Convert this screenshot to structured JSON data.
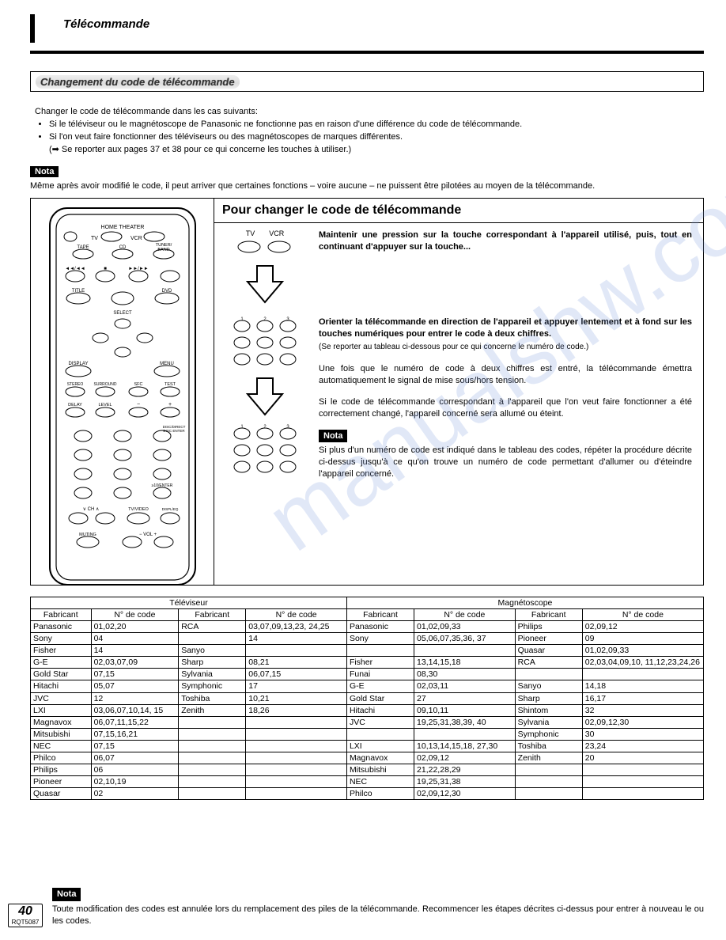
{
  "header": {
    "title": "Télécommande"
  },
  "banner": {
    "title": "Changement du code de télécommande"
  },
  "intro": {
    "lead": "Changer le code de télécommande dans les cas suivants:",
    "bullets": [
      "Si le téléviseur ou le magnétoscope de Panasonic ne fonctionne pas en raison d'une différence du code de télécommande.",
      "Si l'on veut faire fonctionner des téléviseurs ou des magnétoscopes de marques différentes."
    ],
    "ref": "(➡ Se reporter aux pages 37 et 38 pour ce qui concerne les touches à utiliser.)"
  },
  "nota1": {
    "label": "Nota",
    "text": "Même après avoir modifié le code, il peut arriver que certaines fonctions – voire aucune – ne puissent être pilotées au moyen de la télécommande."
  },
  "changer": {
    "title": "Pour changer le code de télécommande",
    "tv_label": "TV",
    "vcr_label": "VCR",
    "step1_bold": "Maintenir une pression sur la touche correspondant à l'appareil utilisé, puis, tout en continuant d'appuyer sur la touche...",
    "step2_bold": "Orienter la télécommande en direction de l'appareil et appuyer lentement et à fond sur les touches numériques pour entrer le code à deux chiffres.",
    "step2_small": "(Se reporter au tableau ci-dessous pour ce qui concerne le numéro de code.)",
    "step2_p2": "Une fois que le numéro de code à deux chiffres est entré, la télécommande émettra automatiquement le signal de mise sous/hors tension.",
    "step2_p3": "Si le code de télécommande correspondant à l'appareil que l'on veut faire fonctionner a été correctement changé, l'appareil concerné sera allumé ou éteint.",
    "nota2_label": "Nota",
    "nota2_text": "Si plus d'un numéro de code est indiqué dans le tableau des codes, répéter la procédure décrite ci-dessus jusqu'à ce qu'on trouve un numéro de code permettant d'allumer ou d'éteindre l'appareil concerné."
  },
  "table": {
    "group_tv": "Téléviseur",
    "group_vcr": "Magnétoscope",
    "col_fabricant": "Fabricant",
    "col_code": "N° de code",
    "tv_left": [
      [
        "Panasonic",
        "01,02,20"
      ],
      [
        "Sony",
        "04"
      ],
      [
        "Fisher",
        "14"
      ],
      [
        "G-E",
        "02,03,07,09"
      ],
      [
        "Gold Star",
        "07,15"
      ],
      [
        "Hitachi",
        "05,07"
      ],
      [
        "JVC",
        "12"
      ],
      [
        "LXI",
        "03,06,07,10,14, 15"
      ],
      [
        "Magnavox",
        "06,07,11,15,22"
      ],
      [
        "Mitsubishi",
        "07,15,16,21"
      ],
      [
        "NEC",
        "07,15"
      ],
      [
        "Philco",
        "06,07"
      ],
      [
        "Philips",
        "06"
      ],
      [
        "Pioneer",
        "02,10,19"
      ],
      [
        "Quasar",
        "02"
      ]
    ],
    "tv_right": [
      [
        "RCA",
        "03,07,09,13,23, 24,25"
      ],
      [
        "",
        "14"
      ],
      [
        "Sanyo",
        ""
      ],
      [
        "Sharp",
        "08,21"
      ],
      [
        "Sylvania",
        "06,07,15"
      ],
      [
        "Symphonic",
        "17"
      ],
      [
        "Toshiba",
        "10,21"
      ],
      [
        "Zenith",
        "18,26"
      ],
      [
        "",
        ""
      ],
      [
        "",
        ""
      ],
      [
        "",
        ""
      ],
      [
        "",
        ""
      ],
      [
        "",
        ""
      ],
      [
        "",
        ""
      ],
      [
        "",
        ""
      ]
    ],
    "vcr_left": [
      [
        "Panasonic",
        "01,02,09,33"
      ],
      [
        "Sony",
        "05,06,07,35,36, 37"
      ],
      [
        "",
        ""
      ],
      [
        "Fisher",
        "13,14,15,18"
      ],
      [
        "Funai",
        "08,30"
      ],
      [
        "G-E",
        "02,03,11"
      ],
      [
        "Gold Star",
        "27"
      ],
      [
        "Hitachi",
        "09,10,11"
      ],
      [
        "JVC",
        "19,25,31,38,39, 40"
      ],
      [
        "",
        ""
      ],
      [
        "LXI",
        "10,13,14,15,18, 27,30"
      ],
      [
        "Magnavox",
        "02,09,12"
      ],
      [
        "Mitsubishi",
        "21,22,28,29"
      ],
      [
        "NEC",
        "19,25,31,38"
      ],
      [
        "Philco",
        "02,09,12,30"
      ]
    ],
    "vcr_right": [
      [
        "Philips",
        "02,09,12"
      ],
      [
        "Pioneer",
        "09"
      ],
      [
        "Quasar",
        "01,02,09,33"
      ],
      [
        "RCA",
        "02,03,04,09,10, 11,12,23,24,26"
      ],
      [
        "",
        ""
      ],
      [
        "Sanyo",
        "14,18"
      ],
      [
        "Sharp",
        "16,17"
      ],
      [
        "Shintom",
        "32"
      ],
      [
        "Sylvania",
        "02,09,12,30"
      ],
      [
        "Symphonic",
        "30"
      ],
      [
        "Toshiba",
        "23,24"
      ],
      [
        "Zenith",
        "20"
      ],
      [
        "",
        ""
      ],
      [
        "",
        ""
      ],
      [
        "",
        ""
      ]
    ]
  },
  "footer": {
    "nota_label": "Nota",
    "text": "Toute modification des codes est annulée lors du remplacement des piles de la télécommande. Recommencer les étapes décrites ci-dessus pour entrer à nouveau le ou les codes.",
    "page": "40",
    "ref": "RQT5087"
  },
  "watermark": "manualshw.com"
}
